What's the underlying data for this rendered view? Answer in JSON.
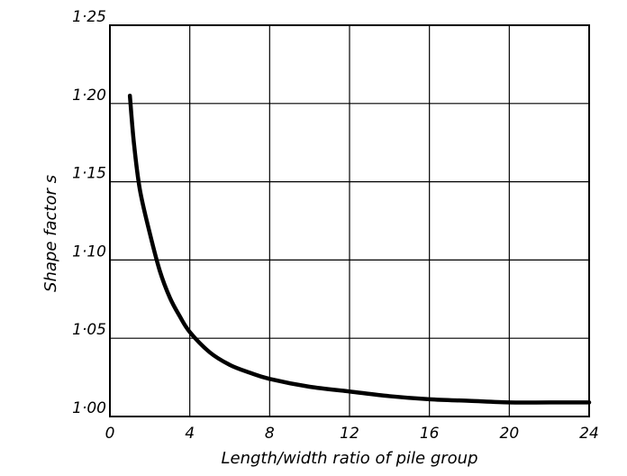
{
  "chart_data": {
    "type": "line",
    "xlabel": "Length/width ratio of pile group",
    "ylabel": "Shape factor s",
    "xlim": [
      0,
      24
    ],
    "ylim": [
      1.0,
      1.25
    ],
    "x_ticks": [
      "0",
      "4",
      "8",
      "12",
      "16",
      "20",
      "24"
    ],
    "y_ticks": [
      "1·00",
      "1·05",
      "1·10",
      "1·15",
      "1·20",
      "1·25"
    ],
    "grid": true,
    "series": [
      {
        "x": [
          1,
          1.2,
          1.5,
          2,
          2.5,
          3,
          3.5,
          4,
          5,
          6,
          7,
          8,
          10,
          12,
          14,
          16,
          18,
          20,
          22,
          24
        ],
        "y": [
          1.205,
          1.175,
          1.145,
          1.117,
          1.093,
          1.076,
          1.064,
          1.054,
          1.041,
          1.033,
          1.028,
          1.024,
          1.019,
          1.016,
          1.013,
          1.011,
          1.01,
          1.009,
          1.009,
          1.009
        ]
      }
    ]
  }
}
